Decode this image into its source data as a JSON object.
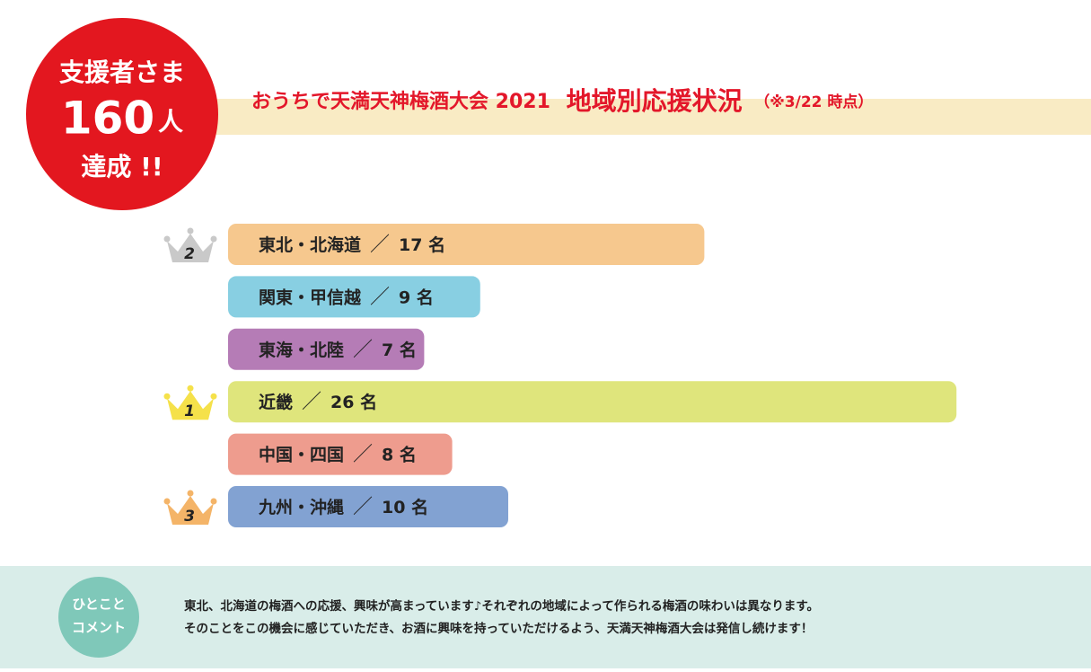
{
  "chart_data": {
    "type": "bar",
    "title": "おうちで天満天神梅酒大会 2021",
    "subtitle": "地域別応援状況",
    "note": "（※3/22 時点）",
    "categories": [
      "東北・北海道",
      "関東・甲信越",
      "東海・北陸",
      "近畿",
      "中国・四国",
      "九州・沖縄"
    ],
    "separator": "／",
    "values": [
      17,
      9,
      7,
      26,
      8,
      10
    ],
    "value_labels": [
      "17 名",
      "9 名",
      "7 名",
      "26 名",
      "8 名",
      "10 名"
    ],
    "colors": [
      "#f6c88e",
      "#88cfe2",
      "#b57cb6",
      "#dfe57c",
      "#ee9c8e",
      "#82a2d2"
    ],
    "ranks": [
      2,
      null,
      null,
      1,
      null,
      3
    ],
    "crown_colors": [
      "#c9c9c9",
      null,
      null,
      "#f5e14a",
      null,
      "#f4b468"
    ]
  },
  "badge": {
    "line1": "支援者さま",
    "count": 160,
    "unit": "人",
    "line3": "達成 !!"
  },
  "comment": {
    "label": [
      "ひとこと",
      "コメント"
    ],
    "lines": [
      "東北、北海道の梅酒への応援、興味が高まっています♪それぞれの地域によって作られる梅酒の味わいは異なります。",
      "そのことをこの機会に感じていただき、お酒に興味を持っていただけるよう、天満天神梅酒大会は発信し続けます！"
    ]
  }
}
